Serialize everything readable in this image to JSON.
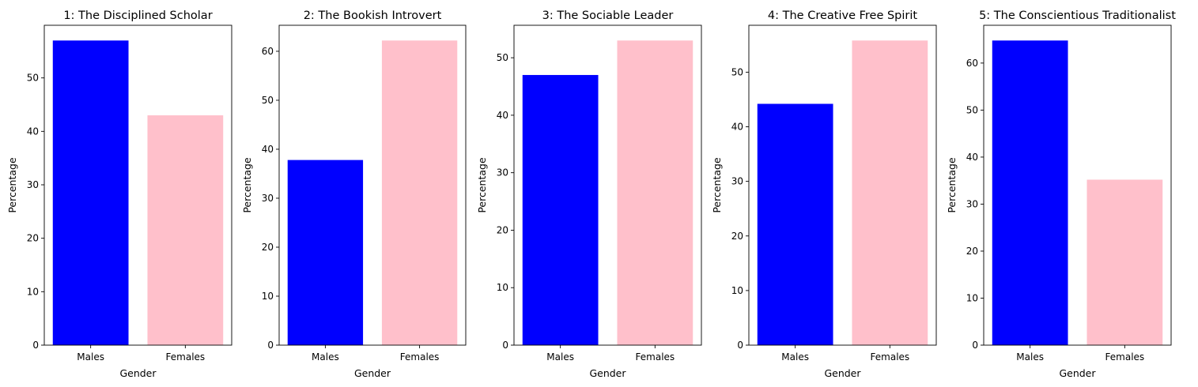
{
  "chart_data": [
    {
      "type": "bar",
      "title": "1: The Disciplined Scholar",
      "xlabel": "Gender",
      "ylabel": "Percentage",
      "categories": [
        "Males",
        "Females"
      ],
      "values": [
        57,
        43
      ],
      "colors": [
        "#0000ff",
        "#ffc0cb"
      ],
      "ylim": [
        0,
        59.85
      ],
      "yticks": [
        0,
        10,
        20,
        30,
        40,
        50
      ]
    },
    {
      "type": "bar",
      "title": "2: The Bookish Introvert",
      "xlabel": "Gender",
      "ylabel": "Percentage",
      "categories": [
        "Males",
        "Females"
      ],
      "values": [
        37.8,
        62.2
      ],
      "colors": [
        "#0000ff",
        "#ffc0cb"
      ],
      "ylim": [
        0,
        65.31
      ],
      "yticks": [
        0,
        10,
        20,
        30,
        40,
        50,
        60
      ]
    },
    {
      "type": "bar",
      "title": "3: The Sociable Leader",
      "xlabel": "Gender",
      "ylabel": "Percentage",
      "categories": [
        "Males",
        "Females"
      ],
      "values": [
        47,
        53
      ],
      "colors": [
        "#0000ff",
        "#ffc0cb"
      ],
      "ylim": [
        0,
        55.65
      ],
      "yticks": [
        0,
        10,
        20,
        30,
        40,
        50
      ]
    },
    {
      "type": "bar",
      "title": "4: The Creative Free Spirit",
      "xlabel": "Gender",
      "ylabel": "Percentage",
      "categories": [
        "Males",
        "Females"
      ],
      "values": [
        44.2,
        55.8
      ],
      "colors": [
        "#0000ff",
        "#ffc0cb"
      ],
      "ylim": [
        0,
        58.59
      ],
      "yticks": [
        0,
        10,
        20,
        30,
        40,
        50
      ]
    },
    {
      "type": "bar",
      "title": "5: The Conscientious Traditionalist",
      "xlabel": "Gender",
      "ylabel": "Percentage",
      "categories": [
        "Males",
        "Females"
      ],
      "values": [
        64.8,
        35.2
      ],
      "colors": [
        "#0000ff",
        "#ffc0cb"
      ],
      "ylim": [
        0,
        68.04
      ],
      "yticks": [
        0,
        10,
        20,
        30,
        40,
        50,
        60
      ]
    }
  ]
}
